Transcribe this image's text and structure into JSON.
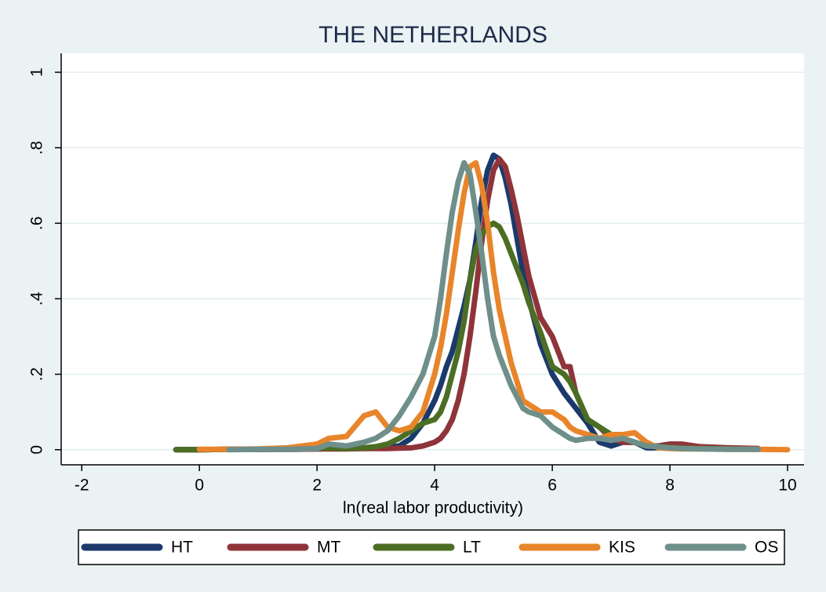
{
  "chart_data": {
    "type": "line",
    "title": "THE NETHERLANDS",
    "x_label": "ln(real labor productivity)",
    "x": [
      -0.4,
      0,
      0.5,
      1,
      1.5,
      2,
      2.2,
      2.5,
      2.8,
      3,
      3.2,
      3.4,
      3.6,
      3.8,
      4,
      4.1,
      4.2,
      4.3,
      4.4,
      4.5,
      4.6,
      4.7,
      4.8,
      4.9,
      5.0,
      5.1,
      5.2,
      5.3,
      5.4,
      5.5,
      5.6,
      5.8,
      6,
      6.2,
      6.3,
      6.4,
      6.6,
      6.8,
      7,
      7.2,
      7.4,
      7.6,
      7.8,
      8,
      8.2,
      8.5,
      9,
      9.5,
      10
    ],
    "series": [
      {
        "name": "HT",
        "color": "#1b3a6b",
        "values": [
          0,
          0,
          0.001,
          0.001,
          0.001,
          0.002,
          0.003,
          0.003,
          0.004,
          0.005,
          0.007,
          0.01,
          0.03,
          0.07,
          0.13,
          0.17,
          0.22,
          0.26,
          0.32,
          0.38,
          0.45,
          0.55,
          0.66,
          0.74,
          0.78,
          0.77,
          0.72,
          0.65,
          0.56,
          0.47,
          0.4,
          0.28,
          0.2,
          0.15,
          0.13,
          0.11,
          0.07,
          0.02,
          0.01,
          0.02,
          0.02,
          0.005,
          0.005,
          0.01,
          0.005,
          0.005,
          0.003,
          0.002,
          null
        ]
      },
      {
        "name": "MT",
        "color": "#8f343a",
        "values": [
          0,
          0,
          0.001,
          0.001,
          0.001,
          0.002,
          0.002,
          0.002,
          0.003,
          0.003,
          0.003,
          0.004,
          0.005,
          0.01,
          0.02,
          0.03,
          0.05,
          0.08,
          0.13,
          0.2,
          0.3,
          0.42,
          0.55,
          0.66,
          0.74,
          0.77,
          0.75,
          0.69,
          0.62,
          0.54,
          0.46,
          0.35,
          0.3,
          0.22,
          0.22,
          0.15,
          0.08,
          0.06,
          0.03,
          0.02,
          0.02,
          0.01,
          0.01,
          0.015,
          0.015,
          0.008,
          0.005,
          0.003,
          null
        ]
      },
      {
        "name": "LT",
        "color": "#4b6e24",
        "values": [
          0,
          0,
          0.001,
          0.001,
          0.002,
          0.003,
          0.005,
          0.003,
          0.005,
          0.008,
          0.015,
          0.03,
          0.05,
          0.07,
          0.08,
          0.1,
          0.14,
          0.2,
          0.26,
          0.34,
          0.45,
          0.53,
          0.57,
          0.59,
          0.6,
          0.59,
          0.56,
          0.52,
          0.48,
          0.44,
          0.39,
          0.31,
          0.22,
          0.2,
          0.18,
          0.15,
          0.08,
          0.06,
          0.04,
          0.03,
          0.02,
          0.01,
          0.008,
          0.006,
          0.004,
          0.003,
          0.002,
          0.001,
          null
        ]
      },
      {
        "name": "KIS",
        "color": "#e8852b",
        "values": [
          null,
          0.001,
          0.001,
          0.002,
          0.005,
          0.015,
          0.03,
          0.035,
          0.09,
          0.1,
          0.06,
          0.05,
          0.06,
          0.1,
          0.2,
          0.27,
          0.36,
          0.47,
          0.58,
          0.68,
          0.75,
          0.76,
          0.7,
          0.6,
          0.47,
          0.37,
          0.3,
          0.23,
          0.18,
          0.13,
          0.12,
          0.1,
          0.1,
          0.08,
          0.06,
          0.05,
          0.04,
          0.03,
          0.04,
          0.04,
          0.045,
          0.02,
          0.005,
          0.003,
          0.002,
          0.002,
          0.001,
          0.001,
          0
        ]
      },
      {
        "name": "OS",
        "color": "#6f8f8a",
        "values": [
          null,
          null,
          0,
          0.001,
          0.001,
          0.003,
          0.015,
          0.01,
          0.02,
          0.03,
          0.05,
          0.09,
          0.14,
          0.2,
          0.3,
          0.4,
          0.52,
          0.63,
          0.71,
          0.76,
          0.73,
          0.63,
          0.52,
          0.4,
          0.3,
          0.25,
          0.21,
          0.17,
          0.14,
          0.11,
          0.1,
          0.09,
          0.06,
          0.04,
          0.03,
          0.025,
          0.03,
          0.03,
          0.025,
          0.03,
          0.02,
          0.01,
          0.008,
          0.005,
          0.003,
          0.002,
          0.001,
          0.001,
          null
        ]
      }
    ],
    "xlim": [
      -2.35,
      10.28
    ],
    "xticks": [
      -2,
      0,
      2,
      4,
      6,
      8,
      10
    ],
    "ylim": [
      -0.04,
      1.05
    ],
    "yticks": [
      0,
      {
        "value": 0.2,
        "label": ".2"
      },
      {
        "value": 0.4,
        "label": ".4"
      },
      {
        "value": 0.6,
        "label": ".6"
      },
      {
        "value": 0.8,
        "label": ".8"
      },
      1
    ],
    "grid": true,
    "legend": "bottom"
  }
}
